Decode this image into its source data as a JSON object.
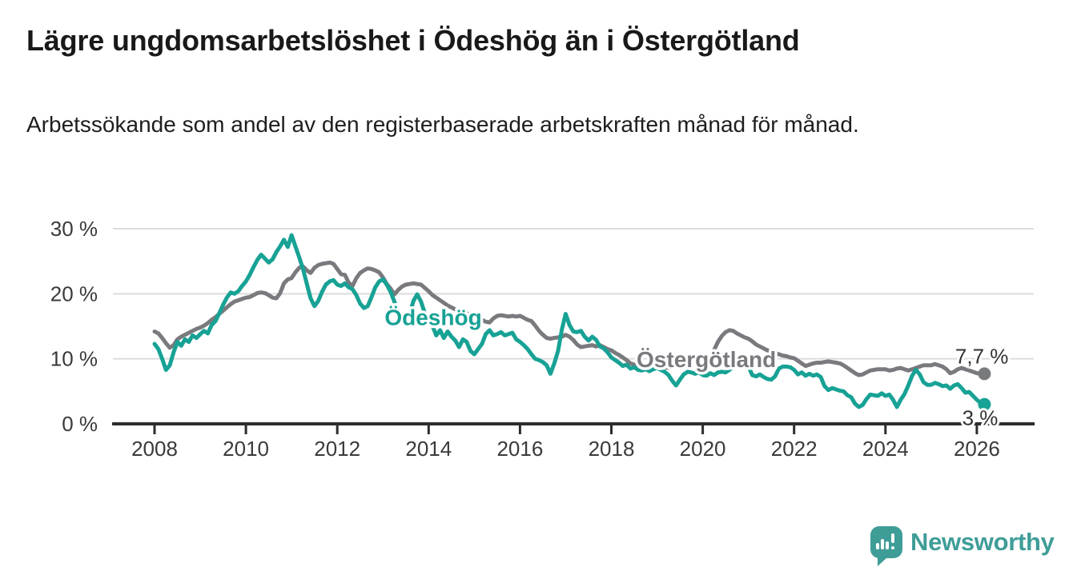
{
  "title": "Lägre ungdomsarbetslöshet i Ödeshög än i Östergötland",
  "subtitle": "Arbetssökande som andel av den registerbaserade arbetskraften månad för månad.",
  "branding": {
    "logo_text": "Newsworthy",
    "logo_icon": "bar-chart-speech-bubble-icon"
  },
  "colors": {
    "odeshog_line": "#17a295",
    "ostergotland_line": "#797a7e",
    "grid": "#dcdcdc",
    "axis": "#2d2d2d",
    "tick_text": "#3a3a3a",
    "value_label_text": "#333333",
    "title_text": "#191919",
    "brand_teal": "#3f9d98"
  },
  "chart_data": {
    "type": "line",
    "title": "Lägre ungdomsarbetslöshet i Ödeshög än i Östergötland",
    "subtitle": "Arbetssökande som andel av den registerbaserade arbetskraften månad för månad.",
    "grid": "horizontal",
    "legend_position": "inline-labels",
    "x_axis": {
      "tick_years": [
        2008,
        2010,
        2012,
        2014,
        2016,
        2018,
        2020,
        2022,
        2024,
        2026
      ],
      "range": [
        2007.1,
        2027.3
      ]
    },
    "y_axis": {
      "ticks": [
        0,
        10,
        20,
        30
      ],
      "labels": [
        "0 %",
        "10 %",
        "20 %",
        "30 %"
      ],
      "unit": "%",
      "range": [
        0,
        32
      ]
    },
    "frequency": "monthly",
    "series": [
      {
        "name": "Ödeshög",
        "color": "#17a295",
        "end_label": "3 %",
        "last_value": 3.0,
        "label_anchor": {
          "year": 2014.1,
          "value": 16.4
        },
        "start_year": 2008,
        "values": [
          12.3,
          11.5,
          10.0,
          8.3,
          9.0,
          11.0,
          12.6,
          12.0,
          13.0,
          12.6,
          13.6,
          13.2,
          13.8,
          14.3,
          13.9,
          15.2,
          15.8,
          17.0,
          18.3,
          19.4,
          20.2,
          20.0,
          20.4,
          21.2,
          21.9,
          22.9,
          24.1,
          25.2,
          26.0,
          25.4,
          24.8,
          25.3,
          26.4,
          27.3,
          28.3,
          27.2,
          29.0,
          27.3,
          25.6,
          23.8,
          21.5,
          19.3,
          18.1,
          18.9,
          20.3,
          21.4,
          21.9,
          22.1,
          21.4,
          21.2,
          21.6,
          21.0,
          20.7,
          19.8,
          18.5,
          17.8,
          18.1,
          19.5,
          21.0,
          21.9,
          22.2,
          21.4,
          20.3,
          18.8,
          17.2,
          15.8,
          15.2,
          16.8,
          18.9,
          19.9,
          18.8,
          17.0,
          15.8,
          15.1,
          13.6,
          14.4,
          13.2,
          14.2,
          13.4,
          12.8,
          11.8,
          13.0,
          12.6,
          11.2,
          10.7,
          11.5,
          12.3,
          13.8,
          14.4,
          13.6,
          13.8,
          14.1,
          13.6,
          13.8,
          14.0,
          13.0,
          12.6,
          12.1,
          11.5,
          10.7,
          10.0,
          9.8,
          9.5,
          9.0,
          7.7,
          9.3,
          11.2,
          14.5,
          16.9,
          15.2,
          14.2,
          14.1,
          14.3,
          13.4,
          12.8,
          13.4,
          12.9,
          11.9,
          11.6,
          11.0,
          10.2,
          9.8,
          9.4,
          8.9,
          9.1,
          8.5,
          8.7,
          8.3,
          8.2,
          8.4,
          8.1,
          8.4,
          8.6,
          8.3,
          8.0,
          7.5,
          6.6,
          5.9,
          6.8,
          7.6,
          8.0,
          7.9,
          7.7,
          7.9,
          7.5,
          7.4,
          7.8,
          7.5,
          7.9,
          8.0,
          7.9,
          8.3,
          8.7,
          9.0,
          9.2,
          9.1,
          8.9,
          7.5,
          7.3,
          7.6,
          7.2,
          6.9,
          6.8,
          7.3,
          8.5,
          8.8,
          8.8,
          8.7,
          8.3,
          7.6,
          7.9,
          7.4,
          7.7,
          7.4,
          7.6,
          7.2,
          5.8,
          5.2,
          5.5,
          5.3,
          5.1,
          5.0,
          4.4,
          4.1,
          3.1,
          2.6,
          2.9,
          3.8,
          4.5,
          4.4,
          4.3,
          4.7,
          4.3,
          4.5,
          3.7,
          2.6,
          3.7,
          4.6,
          5.9,
          7.4,
          8.3,
          7.6,
          6.4,
          6.0,
          6.0,
          6.3,
          6.1,
          5.8,
          5.9,
          5.4,
          5.9,
          6.1,
          5.5,
          4.8,
          4.9,
          4.3,
          3.7,
          3.2,
          3.0
        ]
      },
      {
        "name": "Östergötland",
        "color": "#797a7e",
        "end_label": "7,7 %",
        "last_value": 7.7,
        "label_anchor": {
          "year": 2020.08,
          "value": 9.95
        },
        "start_year": 2008,
        "values": [
          14.2,
          13.9,
          13.2,
          12.4,
          11.7,
          12.1,
          13.0,
          13.4,
          13.7,
          14.0,
          14.3,
          14.6,
          14.8,
          15.1,
          15.5,
          16.0,
          16.4,
          16.9,
          17.4,
          17.9,
          18.4,
          18.8,
          19.0,
          19.2,
          19.4,
          19.5,
          19.8,
          20.1,
          20.2,
          20.1,
          19.8,
          19.4,
          19.3,
          20.1,
          21.6,
          22.2,
          22.4,
          23.3,
          24.0,
          24.2,
          23.6,
          23.2,
          24.0,
          24.4,
          24.6,
          24.7,
          24.8,
          24.6,
          23.8,
          23.0,
          22.9,
          21.7,
          21.2,
          22.4,
          23.2,
          23.6,
          23.9,
          23.8,
          23.6,
          23.3,
          22.5,
          21.5,
          20.8,
          19.9,
          20.6,
          21.1,
          21.4,
          21.5,
          21.6,
          21.5,
          21.4,
          20.9,
          20.4,
          19.8,
          19.4,
          19.0,
          18.6,
          18.2,
          17.9,
          17.6,
          17.4,
          17.2,
          17.0,
          16.8,
          16.6,
          16.3,
          16.0,
          15.7,
          15.6,
          16.2,
          16.6,
          16.7,
          16.6,
          16.5,
          16.6,
          16.5,
          16.6,
          16.3,
          16.0,
          15.8,
          15.1,
          14.3,
          13.7,
          13.2,
          13.1,
          13.2,
          13.3,
          13.4,
          13.7,
          13.4,
          12.9,
          12.2,
          11.8,
          11.9,
          12.0,
          12.1,
          11.9,
          12.1,
          11.8,
          11.5,
          11.3,
          10.9,
          10.6,
          10.2,
          9.8,
          9.3,
          9.1,
          9.0,
          8.9,
          8.8,
          8.8,
          8.7,
          8.7,
          8.7,
          8.7,
          8.6,
          8.7,
          8.9,
          9.1,
          9.2,
          9.1,
          9.2,
          9.3,
          9.4,
          9.5,
          9.7,
          10.3,
          11.4,
          12.6,
          13.5,
          14.1,
          14.4,
          14.3,
          13.9,
          13.6,
          13.3,
          13.1,
          12.7,
          12.2,
          11.9,
          11.6,
          11.3,
          11.1,
          10.9,
          10.7,
          10.5,
          10.4,
          10.2,
          10.1,
          9.7,
          9.3,
          8.9,
          9.1,
          9.3,
          9.4,
          9.4,
          9.5,
          9.6,
          9.5,
          9.4,
          9.3,
          9.0,
          8.6,
          8.2,
          7.8,
          7.5,
          7.6,
          7.9,
          8.2,
          8.3,
          8.4,
          8.4,
          8.4,
          8.2,
          8.3,
          8.5,
          8.6,
          8.4,
          8.2,
          8.4,
          8.6,
          8.8,
          9.0,
          9.0,
          9.0,
          9.2,
          9.0,
          8.8,
          8.4,
          7.8,
          8.0,
          8.4,
          8.6,
          8.4,
          8.2,
          8.0,
          7.8,
          7.7,
          7.7
        ]
      }
    ]
  }
}
